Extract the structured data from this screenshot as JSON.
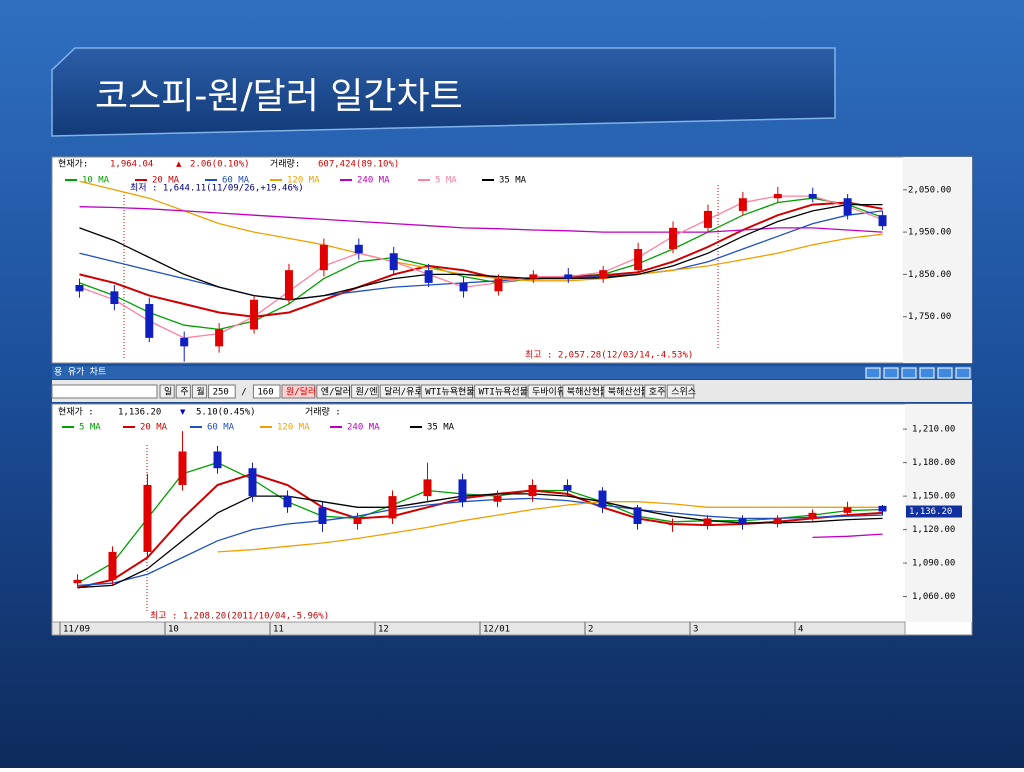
{
  "slide_title": "코스피-원/달러 일간차트",
  "toolbar": {
    "title": "용 유가 차트",
    "buttons": [
      "일",
      "주",
      "월",
      "250",
      "/",
      "160",
      "원/달러",
      "엔/달러",
      "원/엔",
      "달러/유로",
      "WTI뉴욕현물",
      "WTI뉴욕선물",
      "두바이유",
      "북해산현물",
      "북해산선물",
      "호주",
      "스위스"
    ]
  },
  "chart_data": [
    {
      "type": "candlestick",
      "info": [
        "현재가:",
        "1,964.04",
        "▲",
        "2.06(0.10%)",
        "거래량:",
        "607,424(89.10%)"
      ],
      "annotations": [
        "최저 : 1,644.11(11/09/26,+19.46%)",
        "최고 : 2,057.28(12/03/14,-4.53%)"
      ],
      "open": [
        1825,
        1810,
        1780,
        1700,
        1680,
        1720,
        1790,
        1860,
        1920,
        1900,
        1860,
        1830,
        1810,
        1840,
        1850,
        1840,
        1860,
        1910,
        1960,
        2000,
        2030,
        2040,
        2030,
        1990
      ],
      "high": [
        1840,
        1825,
        1795,
        1715,
        1735,
        1800,
        1875,
        1935,
        1935,
        1915,
        1875,
        1845,
        1850,
        1860,
        1865,
        1870,
        1925,
        1975,
        2015,
        2045,
        2057,
        2055,
        2040,
        2000
      ],
      "low": [
        1795,
        1765,
        1690,
        1644,
        1665,
        1710,
        1780,
        1845,
        1885,
        1850,
        1820,
        1795,
        1800,
        1830,
        1830,
        1830,
        1850,
        1900,
        1950,
        1990,
        2020,
        2020,
        1980,
        1955
      ],
      "close": [
        1810,
        1780,
        1700,
        1680,
        1720,
        1790,
        1860,
        1920,
        1900,
        1860,
        1830,
        1810,
        1840,
        1850,
        1840,
        1860,
        1910,
        1960,
        2000,
        2030,
        2040,
        2030,
        1990,
        1964
      ],
      "series": [
        {
          "name": "10 MA",
          "color": "#00a000",
          "values": [
            1830,
            1800,
            1760,
            1730,
            1720,
            1740,
            1780,
            1840,
            1880,
            1890,
            1870,
            1845,
            1830,
            1840,
            1845,
            1850,
            1875,
            1910,
            1950,
            1990,
            2020,
            2030,
            2015,
            1985
          ]
        },
        {
          "name": "20 MA",
          "color": "#d00000",
          "values": [
            1850,
            1830,
            1800,
            1780,
            1760,
            1750,
            1760,
            1790,
            1820,
            1850,
            1870,
            1860,
            1840,
            1840,
            1845,
            1848,
            1855,
            1880,
            1915,
            1955,
            1990,
            2015,
            2020,
            2005
          ]
        },
        {
          "name": "60 MA",
          "color": "#2050c0",
          "values": [
            1900,
            1880,
            1860,
            1840,
            1820,
            1800,
            1790,
            1800,
            1810,
            1820,
            1825,
            1830,
            1835,
            1840,
            1842,
            1845,
            1850,
            1860,
            1880,
            1910,
            1940,
            1970,
            1990,
            2000
          ]
        },
        {
          "name": "120 MA",
          "color": "#f0a000",
          "values": [
            2070,
            2050,
            2030,
            2000,
            1970,
            1950,
            1935,
            1920,
            1900,
            1880,
            1865,
            1850,
            1840,
            1835,
            1835,
            1840,
            1850,
            1860,
            1870,
            1885,
            1900,
            1920,
            1935,
            1945
          ]
        },
        {
          "name": "240 MA",
          "color": "#c000c0",
          "values": [
            2010,
            2008,
            2005,
            2000,
            1995,
            1990,
            1985,
            1980,
            1975,
            1970,
            1965,
            1960,
            1958,
            1955,
            1953,
            1950,
            1950,
            1950,
            1950,
            1955,
            1960,
            1960,
            1955,
            1950
          ]
        },
        {
          "name": "5 MA",
          "color": "#ff80a0",
          "values": [
            1820,
            1790,
            1740,
            1700,
            1710,
            1750,
            1810,
            1870,
            1900,
            1880,
            1850,
            1820,
            1830,
            1845,
            1845,
            1855,
            1890,
            1940,
            1980,
            2020,
            2035,
            2035,
            2010,
            1980
          ]
        },
        {
          "name": "35 MA",
          "color": "#000000",
          "values": [
            1960,
            1930,
            1890,
            1850,
            1820,
            1800,
            1790,
            1800,
            1820,
            1840,
            1850,
            1850,
            1845,
            1840,
            1840,
            1842,
            1850,
            1870,
            1900,
            1940,
            1975,
            2000,
            2015,
            2015
          ]
        }
      ],
      "ylim": [
        1643,
        2092
      ],
      "yticks": [
        {
          "value": 1750,
          "label": "1,750.00"
        },
        {
          "value": 1850,
          "label": "1,850.00"
        },
        {
          "value": 1950,
          "label": "1,950.00"
        },
        {
          "value": 2050,
          "label": "2,050.00"
        }
      ]
    },
    {
      "type": "candlestick",
      "info": [
        "현재가 :",
        "1,136.20",
        "▼",
        "5.10(0.45%)",
        "거래량 :"
      ],
      "annotations": [
        "최고 : 1,208.20(2011/10/04,-5.96%)"
      ],
      "categories": [
        "11/09",
        null,
        null,
        "10",
        null,
        null,
        "11",
        null,
        null,
        "12",
        null,
        null,
        "12/01",
        null,
        null,
        "2",
        null,
        null,
        "3",
        null,
        null,
        "4",
        null,
        null
      ],
      "open": [
        1072,
        1075,
        1100,
        1160,
        1190,
        1175,
        1150,
        1140,
        1125,
        1130,
        1150,
        1165,
        1145,
        1150,
        1160,
        1155,
        1140,
        1125,
        1125,
        1130,
        1125,
        1130,
        1135,
        1141.3
      ],
      "high": [
        1080,
        1105,
        1170,
        1208.2,
        1195,
        1180,
        1155,
        1145,
        1135,
        1155,
        1180,
        1170,
        1155,
        1165,
        1165,
        1158,
        1142,
        1130,
        1133,
        1133,
        1133,
        1138,
        1145,
        1142
      ],
      "low": [
        1068,
        1070,
        1095,
        1155,
        1170,
        1145,
        1135,
        1118,
        1120,
        1125,
        1145,
        1140,
        1140,
        1145,
        1150,
        1135,
        1120,
        1118,
        1120,
        1120,
        1122,
        1128,
        1132,
        1133
      ],
      "close": [
        1075,
        1100,
        1160,
        1190,
        1175,
        1150,
        1140,
        1125,
        1130,
        1150,
        1165,
        1145,
        1150,
        1160,
        1155,
        1140,
        1125,
        1125,
        1130,
        1125,
        1130,
        1135,
        1140,
        1136.2
      ],
      "series": [
        {
          "name": "5 MA",
          "color": "#00a000",
          "values": [
            1072,
            1090,
            1130,
            1170,
            1180,
            1165,
            1145,
            1132,
            1130,
            1142,
            1155,
            1152,
            1150,
            1155,
            1155,
            1145,
            1132,
            1127,
            1128,
            1128,
            1130,
            1133,
            1137,
            1138
          ]
        },
        {
          "name": "20 MA",
          "color": "#d00000",
          "values": [
            1068,
            1075,
            1095,
            1130,
            1160,
            1170,
            1160,
            1140,
            1130,
            1132,
            1140,
            1148,
            1152,
            1155,
            1152,
            1140,
            1130,
            1125,
            1124,
            1125,
            1127,
            1130,
            1133,
            1135
          ]
        },
        {
          "name": "60 MA",
          "color": "#2050c0",
          "values": [
            1070,
            1072,
            1080,
            1095,
            1110,
            1120,
            1125,
            1128,
            1132,
            1138,
            1142,
            1145,
            1147,
            1148,
            1146,
            1142,
            1138,
            1135,
            1132,
            1130,
            1130,
            1131,
            1132,
            1133
          ]
        },
        {
          "name": "120 MA",
          "color": "#f0a000",
          "values": [
            null,
            null,
            null,
            null,
            1100,
            1102,
            1105,
            1108,
            1112,
            1117,
            1122,
            1128,
            1133,
            1138,
            1142,
            1145,
            1145,
            1143,
            1140,
            1140,
            1140,
            1140,
            1140,
            1140
          ]
        },
        {
          "name": "240 MA",
          "color": "#c000c0",
          "values": [
            null,
            null,
            null,
            null,
            null,
            null,
            null,
            null,
            null,
            null,
            null,
            null,
            null,
            null,
            null,
            null,
            null,
            null,
            null,
            null,
            null,
            1113,
            1114,
            1116
          ]
        },
        {
          "name": "35 MA",
          "color": "#000000",
          "values": [
            1068,
            1070,
            1085,
            1110,
            1135,
            1150,
            1150,
            1145,
            1140,
            1140,
            1145,
            1150,
            1152,
            1152,
            1150,
            1145,
            1138,
            1132,
            1128,
            1126,
            1126,
            1127,
            1129,
            1130
          ]
        }
      ],
      "last_price": {
        "value": 1136.2,
        "label": "1,136.20"
      },
      "ylim": [
        1039,
        1220
      ],
      "yticks": [
        {
          "value": 1060,
          "label": "1,060.00"
        },
        {
          "value": 1090,
          "label": "1,090.00"
        },
        {
          "value": 1120,
          "label": "1,120.00"
        },
        {
          "value": 1150,
          "label": "1,150.00"
        },
        {
          "value": 1180,
          "label": "1,180.00"
        },
        {
          "value": 1210,
          "label": "1,210.00"
        }
      ]
    }
  ]
}
